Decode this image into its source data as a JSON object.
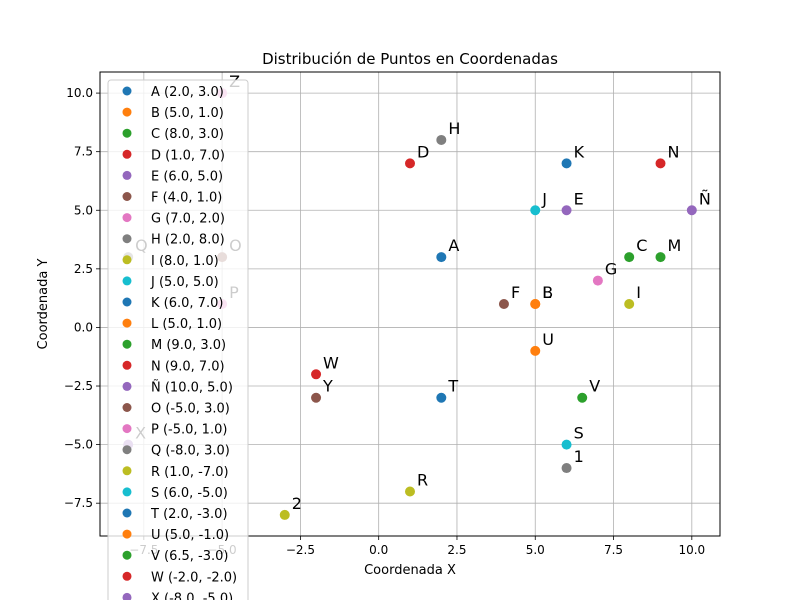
{
  "chart_data": {
    "type": "scatter",
    "title": "Distribución de Puntos en Coordenadas",
    "xlabel": "Coordenada X",
    "ylabel": "Coordenada Y",
    "xlim": [
      -8.9,
      10.9
    ],
    "ylim": [
      -8.9,
      10.9
    ],
    "xticks": [
      -7.5,
      -5.0,
      -2.5,
      0.0,
      2.5,
      5.0,
      7.5,
      10.0
    ],
    "yticks": [
      -7.5,
      -5.0,
      -2.5,
      0.0,
      2.5,
      5.0,
      7.5,
      10.0
    ],
    "xtick_labels": [
      "−7.5",
      "−5.0",
      "−2.5",
      "0.0",
      "2.5",
      "5.0",
      "7.5",
      "10.0"
    ],
    "ytick_labels": [
      "−7.5",
      "−5.0",
      "−2.5",
      "0.0",
      "2.5",
      "5.0",
      "7.5",
      "10.0"
    ],
    "grid": true,
    "legend_position": "upper-left",
    "points": [
      {
        "label": "A",
        "x": 2.0,
        "y": 3.0,
        "legend": "A (2.0, 3.0)",
        "color": "#1f77b4"
      },
      {
        "label": "B",
        "x": 5.0,
        "y": 1.0,
        "legend": "B (5.0, 1.0)",
        "color": "#ff7f0e"
      },
      {
        "label": "C",
        "x": 8.0,
        "y": 3.0,
        "legend": "C (8.0, 3.0)",
        "color": "#2ca02c"
      },
      {
        "label": "D",
        "x": 1.0,
        "y": 7.0,
        "legend": "D (1.0, 7.0)",
        "color": "#d62728"
      },
      {
        "label": "E",
        "x": 6.0,
        "y": 5.0,
        "legend": "E (6.0, 5.0)",
        "color": "#9467bd"
      },
      {
        "label": "F",
        "x": 4.0,
        "y": 1.0,
        "legend": "F (4.0, 1.0)",
        "color": "#8c564b"
      },
      {
        "label": "G",
        "x": 7.0,
        "y": 2.0,
        "legend": "G (7.0, 2.0)",
        "color": "#e377c2"
      },
      {
        "label": "H",
        "x": 2.0,
        "y": 8.0,
        "legend": "H (2.0, 8.0)",
        "color": "#7f7f7f"
      },
      {
        "label": "I",
        "x": 8.0,
        "y": 1.0,
        "legend": "I (8.0, 1.0)",
        "color": "#bcbd22"
      },
      {
        "label": "J",
        "x": 5.0,
        "y": 5.0,
        "legend": "J (5.0, 5.0)",
        "color": "#17becf"
      },
      {
        "label": "K",
        "x": 6.0,
        "y": 7.0,
        "legend": "K (6.0, 7.0)",
        "color": "#1f77b4"
      },
      {
        "label": "L",
        "x": 5.0,
        "y": 1.0,
        "legend": "L (5.0, 1.0)",
        "color": "#ff7f0e"
      },
      {
        "label": "M",
        "x": 9.0,
        "y": 3.0,
        "legend": "M (9.0, 3.0)",
        "color": "#2ca02c"
      },
      {
        "label": "N",
        "x": 9.0,
        "y": 7.0,
        "legend": "N (9.0, 7.0)",
        "color": "#d62728"
      },
      {
        "label": "Ñ",
        "x": 10.0,
        "y": 5.0,
        "legend": "Ñ (10.0, 5.0)",
        "color": "#9467bd"
      },
      {
        "label": "O",
        "x": -5.0,
        "y": 3.0,
        "legend": "O (-5.0, 3.0)",
        "color": "#8c564b"
      },
      {
        "label": "P",
        "x": -5.0,
        "y": 1.0,
        "legend": "P (-5.0, 1.0)",
        "color": "#e377c2"
      },
      {
        "label": "Q",
        "x": -8.0,
        "y": 3.0,
        "legend": "Q (-8.0, 3.0)",
        "color": "#7f7f7f"
      },
      {
        "label": "R",
        "x": 1.0,
        "y": -7.0,
        "legend": "R (1.0, -7.0)",
        "color": "#bcbd22"
      },
      {
        "label": "S",
        "x": 6.0,
        "y": -5.0,
        "legend": "S (6.0, -5.0)",
        "color": "#17becf"
      },
      {
        "label": "T",
        "x": 2.0,
        "y": -3.0,
        "legend": "T (2.0, -3.0)",
        "color": "#1f77b4"
      },
      {
        "label": "U",
        "x": 5.0,
        "y": -1.0,
        "legend": "U (5.0, -1.0)",
        "color": "#ff7f0e"
      },
      {
        "label": "V",
        "x": 6.5,
        "y": -3.0,
        "legend": "V (6.5, -3.0)",
        "color": "#2ca02c"
      },
      {
        "label": "W",
        "x": -2.0,
        "y": -2.0,
        "legend": "W (-2.0, -2.0)",
        "color": "#d62728"
      },
      {
        "label": "X",
        "x": -8.0,
        "y": -5.0,
        "legend": "X (-8.0, -5.0)",
        "color": "#9467bd"
      },
      {
        "label": "Y",
        "x": -2.0,
        "y": -3.0,
        "legend": "",
        "color": "#8c564b"
      },
      {
        "label": "Z",
        "x": -5.0,
        "y": 10.0,
        "legend": "",
        "color": "#e377c2"
      },
      {
        "label": "1",
        "x": 6.0,
        "y": -6.0,
        "legend": "",
        "color": "#7f7f7f"
      },
      {
        "label": "2",
        "x": -3.0,
        "y": -8.0,
        "legend": "",
        "color": "#bcbd22"
      }
    ]
  }
}
